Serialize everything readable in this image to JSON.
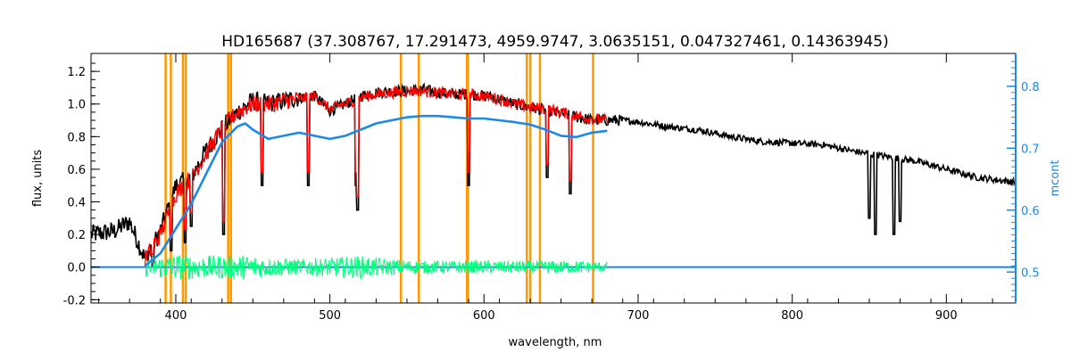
{
  "chart_data": {
    "type": "line",
    "title": "HD165687    (37.308767, 17.291473, 4959.9747, 3.0635151, 0.047327461, 0.14363945)",
    "xlabel": "wavelength, nm",
    "ylabel": "flux, units",
    "y2label": "mcont",
    "xlim": [
      345,
      945
    ],
    "ylim": [
      -0.22,
      1.31
    ],
    "y2lim": [
      0.45,
      0.853
    ],
    "x_ticks": [
      400,
      500,
      600,
      700,
      800,
      900
    ],
    "y_ticks": [
      -0.2,
      0.0,
      0.2,
      0.4,
      0.6,
      0.8,
      1.0,
      1.2
    ],
    "y2_ticks": [
      0.5,
      0.6,
      0.7,
      0.8
    ],
    "x_tick_labels": [
      "400",
      "500",
      "600",
      "700",
      "800",
      "900"
    ],
    "y_tick_labels": [
      "-0.2",
      "0.0",
      "0.2",
      "0.4",
      "0.6",
      "0.8",
      "1.0",
      "1.2"
    ],
    "y2_tick_labels": [
      "0.5",
      "0.6",
      "0.7",
      "0.8"
    ],
    "grid": false,
    "colors": {
      "observed": "#000000",
      "model": "#ff0000",
      "residual": "#00ff7f",
      "continuum": "#1e88e5",
      "markers": "#ff9900",
      "right_axis": "#1e88e5"
    },
    "vertical_markers": [
      393.4,
      396.8,
      404.6,
      406.4,
      434.0,
      435.8,
      546.1,
      557.7,
      589.0,
      589.6,
      627.8,
      630.0,
      636.3,
      670.8
    ],
    "series": [
      {
        "key": "observed",
        "x": [
          345,
          360,
          370,
          380,
          390,
          400,
          410,
          420,
          430,
          440,
          450,
          460,
          470,
          480,
          490,
          500,
          510,
          520,
          530,
          540,
          550,
          560,
          570,
          580,
          590,
          600,
          610,
          620,
          630,
          640,
          650,
          660,
          670,
          680,
          690,
          700,
          720,
          740,
          760,
          780,
          800,
          820,
          840,
          860,
          880,
          900,
          920,
          945
        ],
        "y": [
          0.2,
          0.22,
          0.28,
          0.05,
          0.22,
          0.5,
          0.55,
          0.72,
          0.85,
          0.95,
          1.02,
          1.0,
          1.02,
          1.04,
          1.05,
          0.96,
          1.0,
          1.05,
          1.07,
          1.08,
          1.08,
          1.09,
          1.07,
          1.06,
          1.06,
          1.05,
          1.03,
          1.0,
          0.98,
          0.96,
          0.94,
          0.92,
          0.9,
          0.9,
          0.9,
          0.89,
          0.86,
          0.84,
          0.8,
          0.77,
          0.76,
          0.75,
          0.71,
          0.68,
          0.65,
          0.6,
          0.55,
          0.52
        ],
        "absorption_lines": [
          [
            385,
            0.0
          ],
          [
            397,
            0.1
          ],
          [
            406,
            0.15
          ],
          [
            410,
            0.25
          ],
          [
            431,
            0.2
          ],
          [
            456,
            0.5
          ],
          [
            486,
            0.5
          ],
          [
            517,
            0.5
          ],
          [
            518,
            0.35
          ],
          [
            590,
            0.5
          ],
          [
            641,
            0.55
          ],
          [
            656,
            0.45
          ],
          [
            850,
            0.3
          ],
          [
            854,
            0.2
          ],
          [
            866,
            0.2
          ],
          [
            870,
            0.28
          ]
        ]
      },
      {
        "key": "model",
        "x": [
          380,
          390,
          400,
          410,
          420,
          430,
          440,
          450,
          460,
          470,
          480,
          490,
          500,
          510,
          520,
          530,
          540,
          550,
          560,
          570,
          580,
          590,
          600,
          610,
          620,
          630,
          640,
          650,
          660,
          670,
          680
        ],
        "y": [
          0.05,
          0.2,
          0.45,
          0.55,
          0.7,
          0.85,
          0.95,
          1.0,
          1.0,
          1.02,
          1.03,
          1.05,
          0.97,
          1.0,
          1.04,
          1.06,
          1.07,
          1.08,
          1.08,
          1.07,
          1.06,
          1.06,
          1.05,
          1.03,
          1.0,
          0.98,
          0.97,
          0.95,
          0.93,
          0.91,
          0.9
        ]
      },
      {
        "key": "residual",
        "x": [
          380,
          400,
          420,
          440,
          460,
          480,
          500,
          520,
          540,
          560,
          580,
          600,
          620,
          640,
          660,
          680
        ],
        "y": [
          0.0,
          0.0,
          0.0,
          0.0,
          0.0,
          0.0,
          0.0,
          0.0,
          0.0,
          0.0,
          0.0,
          0.0,
          0.0,
          0.0,
          0.0,
          0.0
        ],
        "amplitude": [
          0.06,
          0.08,
          0.07,
          0.08,
          0.06,
          0.05,
          0.06,
          0.07,
          0.05,
          0.04,
          0.04,
          0.04,
          0.04,
          0.04,
          0.04,
          0.03
        ]
      },
      {
        "key": "continuum",
        "axis": "y2",
        "x": [
          380,
          390,
          400,
          410,
          420,
          430,
          440,
          445,
          450,
          460,
          470,
          480,
          490,
          500,
          510,
          520,
          530,
          540,
          550,
          560,
          570,
          580,
          590,
          600,
          610,
          620,
          630,
          640,
          650,
          660,
          670,
          680
        ],
        "y": [
          0.51,
          0.53,
          0.57,
          0.61,
          0.66,
          0.71,
          0.735,
          0.74,
          0.73,
          0.715,
          0.72,
          0.725,
          0.72,
          0.715,
          0.72,
          0.73,
          0.74,
          0.745,
          0.75,
          0.752,
          0.752,
          0.75,
          0.748,
          0.748,
          0.745,
          0.742,
          0.738,
          0.73,
          0.72,
          0.718,
          0.725,
          0.728
        ]
      },
      {
        "key": "continuum_baseline",
        "x": [
          345,
          945
        ],
        "y": [
          0.0,
          0.0
        ]
      }
    ]
  }
}
